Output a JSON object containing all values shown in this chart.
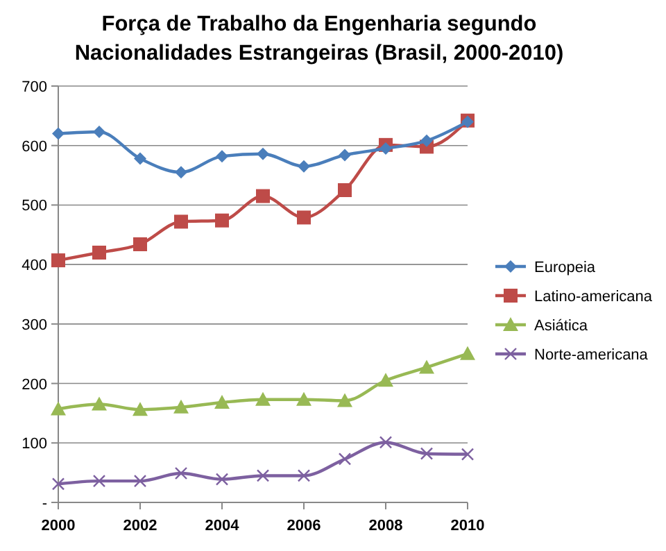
{
  "chart_data": {
    "type": "line",
    "title": "Força de Trabalho da Engenharia segundo\nNacionalidades Estrangeiras (Brasil, 2000-2010)",
    "x": [
      2000,
      2001,
      2002,
      2003,
      2004,
      2005,
      2006,
      2007,
      2008,
      2009,
      2010
    ],
    "xlim": [
      2000,
      2010
    ],
    "xticks": [
      2000,
      2002,
      2004,
      2006,
      2008,
      2010
    ],
    "ylim": [
      0,
      700
    ],
    "yticks": [
      {
        "value": 0,
        "label": "-"
      },
      100,
      200,
      300,
      400,
      500,
      600,
      700
    ],
    "grid": "y",
    "legend": "right",
    "line_style": "solid",
    "series": [
      {
        "name": "Europeia",
        "color": "#4a7ebb",
        "marker": "diamond",
        "values": [
          620,
          623,
          578,
          555,
          582,
          586,
          565,
          584,
          595,
          608,
          640
        ]
      },
      {
        "name": "Latino-americana",
        "color": "#be4b48",
        "marker": "square",
        "values": [
          407,
          420,
          434,
          472,
          474,
          515,
          479,
          525,
          601,
          598,
          642
        ]
      },
      {
        "name": "Asiática",
        "color": "#98b954",
        "marker": "triangle",
        "values": [
          157,
          165,
          156,
          160,
          168,
          173,
          173,
          171,
          205,
          227,
          250
        ]
      },
      {
        "name": "Norte-americana",
        "color": "#7d60a0",
        "marker": "cross",
        "values": [
          31,
          36,
          36,
          49,
          39,
          45,
          45,
          73,
          101,
          82,
          81
        ]
      }
    ]
  }
}
